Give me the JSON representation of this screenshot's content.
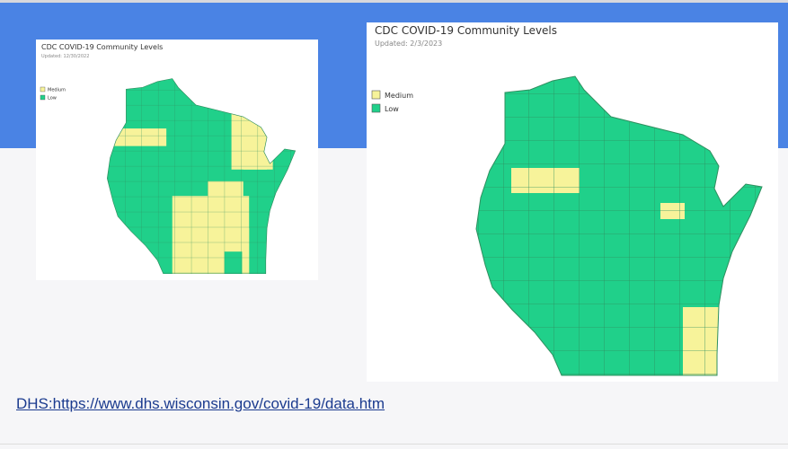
{
  "left_map": {
    "title": "CDC COVID-19 Community Levels",
    "updated": "Updated: 12/30/2022",
    "legend": [
      "Medium",
      "Low"
    ]
  },
  "right_map": {
    "title": "CDC COVID-19 Community Levels",
    "updated": "Updated: 2/3/2023",
    "legend": [
      "Medium",
      "Low"
    ]
  },
  "link": "DHS:https://www.dhs.wisconsin.gov/covid-19/data.htm"
}
